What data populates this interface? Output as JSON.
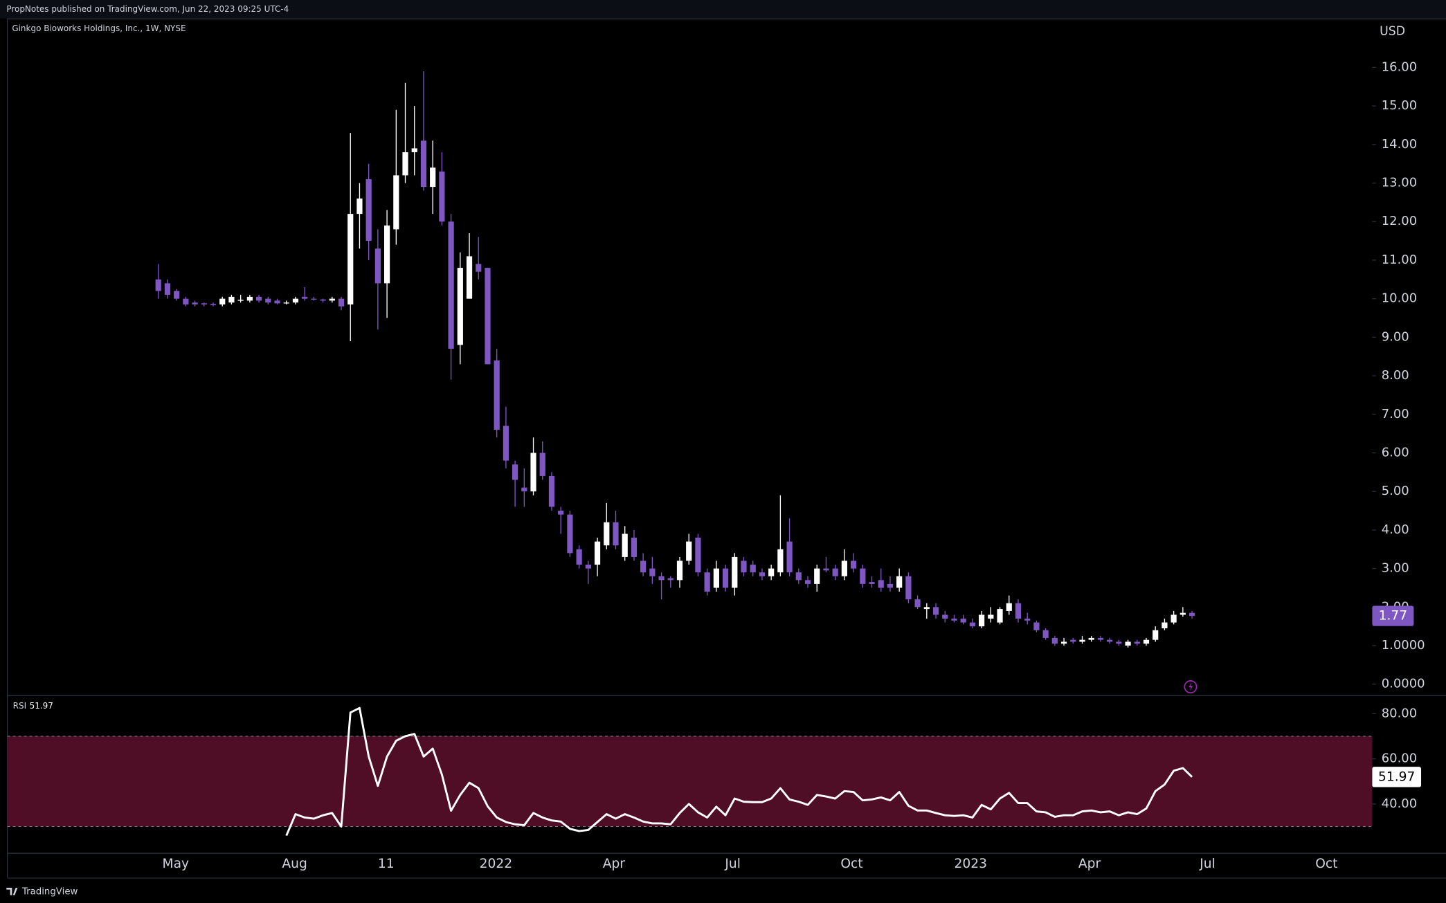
{
  "header": {
    "published": "PropNotes published on TradingView.com, Jun 22, 2023 09:25 UTC-4",
    "symbol": "Ginkgo Bioworks Holdings, Inc., 1W, NYSE",
    "currency": "USD",
    "footer": "TradingView"
  },
  "chart_data": [
    {
      "type": "candlestick",
      "up_color": "#ffffff",
      "down_color": "#7e57c2",
      "open": [
        10.5,
        10.4,
        10.2,
        10.0,
        9.9,
        9.88,
        9.86,
        9.85,
        9.9,
        9.95,
        9.95,
        10.05,
        10.0,
        9.95,
        9.88,
        9.9,
        10.05,
        10.0,
        9.98,
        9.95,
        10.0,
        9.85,
        12.2,
        13.1,
        11.3,
        10.4,
        11.8,
        13.2,
        13.8,
        14.1,
        12.9,
        13.3,
        12.0,
        8.8,
        10.0,
        10.9,
        10.8,
        8.4,
        6.7,
        5.7,
        5.1,
        5.0,
        6.0,
        5.4,
        4.5,
        4.4,
        3.5,
        3.1,
        3.1,
        3.6,
        4.2,
        3.3,
        3.8,
        3.2,
        3.0,
        2.8,
        2.75,
        2.7,
        3.2,
        3.8,
        2.9,
        2.5,
        3.0,
        2.5,
        3.2,
        3.1,
        2.9,
        2.8,
        2.9,
        3.7,
        2.9,
        2.7,
        2.6,
        3.0,
        3.0,
        2.8,
        3.2,
        3.0,
        2.65,
        2.7,
        2.6,
        2.5,
        2.8,
        2.2,
        1.95,
        2.0,
        1.8,
        1.7,
        1.7,
        1.6,
        1.5,
        1.7,
        1.6,
        1.9,
        2.1,
        1.7,
        1.6,
        1.4,
        1.2,
        1.05,
        1.15,
        1.1,
        1.15,
        1.2,
        1.15,
        1.1,
        1.0,
        1.1,
        1.05,
        1.15,
        1.45,
        1.6,
        1.8,
        1.85
      ],
      "high": [
        10.9,
        10.5,
        10.25,
        10.05,
        9.95,
        9.9,
        9.9,
        10.05,
        10.1,
        10.1,
        10.1,
        10.1,
        10.05,
        10.0,
        9.95,
        10.05,
        10.3,
        10.05,
        10.0,
        10.05,
        10.05,
        14.3,
        13.0,
        13.5,
        11.8,
        12.3,
        14.9,
        15.6,
        15.0,
        15.9,
        14.1,
        13.8,
        12.2,
        11.2,
        11.7,
        11.6,
        10.8,
        8.7,
        7.2,
        5.8,
        5.6,
        6.4,
        6.3,
        5.5,
        4.6,
        4.5,
        3.6,
        3.2,
        3.8,
        4.7,
        4.5,
        4.1,
        4.0,
        3.4,
        3.3,
        2.9,
        2.8,
        3.3,
        3.9,
        3.9,
        3.0,
        3.2,
        3.1,
        3.4,
        3.3,
        3.2,
        3.0,
        3.1,
        4.9,
        4.3,
        3.0,
        2.8,
        3.1,
        3.3,
        3.1,
        3.5,
        3.4,
        3.1,
        2.8,
        3.0,
        2.8,
        3.0,
        2.9,
        2.3,
        2.1,
        2.1,
        1.9,
        1.8,
        1.8,
        1.7,
        1.9,
        2.0,
        2.0,
        2.3,
        2.2,
        1.85,
        1.65,
        1.45,
        1.25,
        1.2,
        1.2,
        1.25,
        1.25,
        1.25,
        1.2,
        1.15,
        1.15,
        1.15,
        1.2,
        1.5,
        1.7,
        1.9,
        2.0,
        1.9
      ],
      "low": [
        10.0,
        10.0,
        9.95,
        9.8,
        9.8,
        9.8,
        9.8,
        9.8,
        9.85,
        9.9,
        9.9,
        9.9,
        9.85,
        9.85,
        9.85,
        9.85,
        9.95,
        9.95,
        9.9,
        9.9,
        9.7,
        8.9,
        11.3,
        11.0,
        9.2,
        9.5,
        11.4,
        13.0,
        13.2,
        12.8,
        12.2,
        11.9,
        7.9,
        8.3,
        10.0,
        10.5,
        8.3,
        6.4,
        5.6,
        4.6,
        4.6,
        4.9,
        5.3,
        4.5,
        3.9,
        3.3,
        3.0,
        2.6,
        2.8,
        3.5,
        3.5,
        3.2,
        3.2,
        2.8,
        2.6,
        2.2,
        2.5,
        2.5,
        3.1,
        2.8,
        2.3,
        2.4,
        2.4,
        2.3,
        2.8,
        2.8,
        2.7,
        2.7,
        2.8,
        2.8,
        2.6,
        2.5,
        2.4,
        2.9,
        2.7,
        2.7,
        2.9,
        2.5,
        2.5,
        2.4,
        2.4,
        2.4,
        2.1,
        1.95,
        1.7,
        1.7,
        1.6,
        1.6,
        1.55,
        1.45,
        1.45,
        1.6,
        1.55,
        1.8,
        1.6,
        1.55,
        1.35,
        1.15,
        1.0,
        1.0,
        1.05,
        1.05,
        1.1,
        1.1,
        1.05,
        1.0,
        0.95,
        1.0,
        1.0,
        1.1,
        1.4,
        1.55,
        1.75,
        1.7
      ],
      "close": [
        10.2,
        10.1,
        10.0,
        9.85,
        9.85,
        9.85,
        9.83,
        10.0,
        10.05,
        9.97,
        10.05,
        9.95,
        9.9,
        9.88,
        9.9,
        10.0,
        10.0,
        9.98,
        9.95,
        10.0,
        9.8,
        12.2,
        12.6,
        11.5,
        10.4,
        11.9,
        13.2,
        13.8,
        13.9,
        12.9,
        13.4,
        12.0,
        8.7,
        10.8,
        11.1,
        10.7,
        8.3,
        6.6,
        5.8,
        5.3,
        5.0,
        6.0,
        5.4,
        4.6,
        4.4,
        3.4,
        3.1,
        3.0,
        3.7,
        4.2,
        3.6,
        3.9,
        3.3,
        2.9,
        2.8,
        2.7,
        2.7,
        3.2,
        3.7,
        2.9,
        2.4,
        3.0,
        2.5,
        3.3,
        2.9,
        2.9,
        2.8,
        3.0,
        3.5,
        2.9,
        2.7,
        2.6,
        3.0,
        2.95,
        2.8,
        3.2,
        3.0,
        2.6,
        2.6,
        2.5,
        2.5,
        2.8,
        2.2,
        2.0,
        2.0,
        1.8,
        1.7,
        1.65,
        1.6,
        1.5,
        1.8,
        1.8,
        1.95,
        2.1,
        1.7,
        1.65,
        1.4,
        1.2,
        1.05,
        1.1,
        1.1,
        1.15,
        1.2,
        1.15,
        1.1,
        1.05,
        1.1,
        1.05,
        1.15,
        1.4,
        1.6,
        1.8,
        1.85,
        1.77
      ],
      "xlim": [
        -16.5,
        132.7
      ],
      "xticks": [
        {
          "value": 1.9,
          "label": "May"
        },
        {
          "value": 14.9,
          "label": "Aug"
        },
        {
          "value": 24.9,
          "label": "11"
        },
        {
          "value": 36.9,
          "label": "2022"
        },
        {
          "value": 49.8,
          "label": "Apr"
        },
        {
          "value": 62.8,
          "label": "Jul"
        },
        {
          "value": 75.8,
          "label": "Oct"
        },
        {
          "value": 88.8,
          "label": "2023"
        },
        {
          "value": 101.8,
          "label": "Apr"
        },
        {
          "value": 114.7,
          "label": "Jul"
        },
        {
          "value": 127.7,
          "label": "Oct"
        }
      ],
      "ylim": [
        -0.26,
        17.27
      ],
      "yticks": [
        {
          "value": 0,
          "label": "0.0000"
        },
        {
          "value": 1,
          "label": "1.0000"
        },
        {
          "value": 2,
          "label": "2.00"
        },
        {
          "value": 3,
          "label": "3.00"
        },
        {
          "value": 4,
          "label": "4.00"
        },
        {
          "value": 5,
          "label": "5.00"
        },
        {
          "value": 6,
          "label": "6.00"
        },
        {
          "value": 7,
          "label": "7.00"
        },
        {
          "value": 8,
          "label": "8.00"
        },
        {
          "value": 9,
          "label": "9.00"
        },
        {
          "value": 10,
          "label": "10.00"
        },
        {
          "value": 11,
          "label": "11.00"
        },
        {
          "value": 12,
          "label": "12.00"
        },
        {
          "value": 13,
          "label": "13.00"
        },
        {
          "value": 14,
          "label": "14.00"
        },
        {
          "value": 15,
          "label": "15.00"
        },
        {
          "value": 16,
          "label": "16.00"
        }
      ]
    },
    {
      "type": "line",
      "title": "RSI",
      "color": "#ffffff",
      "band": [
        30,
        70
      ],
      "band_color": "#4f0d26",
      "values": [
        null,
        null,
        null,
        null,
        null,
        null,
        null,
        null,
        null,
        null,
        null,
        null,
        null,
        null,
        26,
        35.5,
        34,
        33.5,
        35,
        36,
        30,
        80.5,
        82.5,
        61,
        48,
        61,
        68,
        70,
        71,
        61,
        64.5,
        53,
        37,
        44,
        49.4,
        47,
        39,
        34,
        32,
        31,
        30.6,
        36,
        34,
        32.7,
        32.2,
        29,
        28,
        28.5,
        32,
        35.5,
        33.5,
        35.5,
        34,
        32.2,
        31.4,
        31.4,
        31,
        36,
        40,
        36.3,
        34,
        38.8,
        35,
        42.4,
        41,
        40.8,
        40.8,
        42.4,
        47,
        42,
        41,
        39.6,
        44,
        43.3,
        42.4,
        45.7,
        45.3,
        41.6,
        42,
        42.9,
        41.6,
        45.3,
        39.2,
        37.1,
        37.1,
        36,
        35,
        34.7,
        35,
        34,
        39.6,
        37.6,
        42.4,
        44.9,
        40.4,
        40.4,
        36.7,
        36.3,
        34.3,
        35,
        35,
        36.7,
        37.1,
        36.3,
        36.7,
        35,
        36.3,
        35.5,
        38,
        45.7,
        48.6,
        54.7,
        55.9,
        51.97
      ],
      "ylim": [
        18.4,
        87.8
      ],
      "yticks": [
        {
          "value": 40,
          "label": "40.00"
        },
        {
          "value": 60,
          "label": "60.00"
        },
        {
          "value": 80,
          "label": "80.00"
        }
      ]
    }
  ]
}
